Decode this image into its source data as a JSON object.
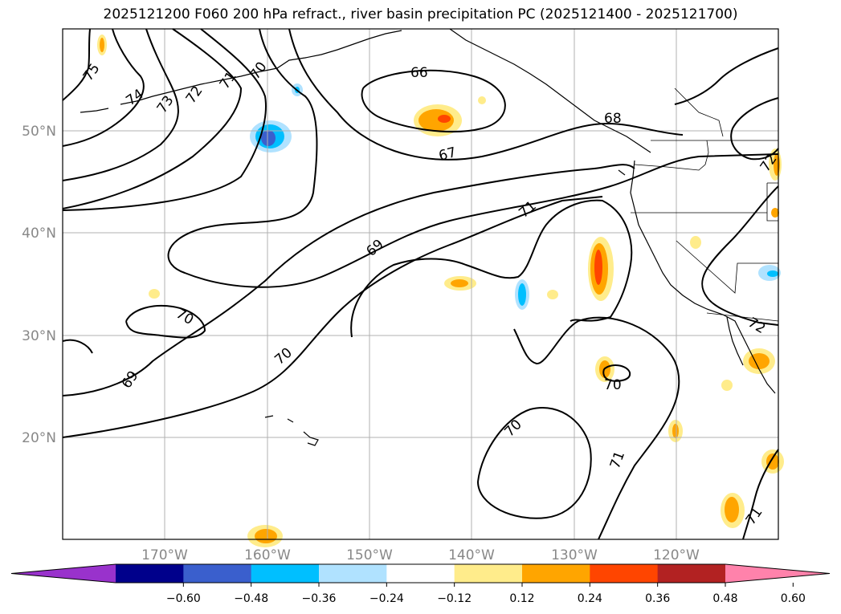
{
  "title": "2025121200 F060 200 hPa refract., river basin precipitation PC (2025121400 - 2025121700)",
  "lat_labels": [
    "50°N",
    "40°N",
    "30°N",
    "20°N"
  ],
  "lon_labels": [
    "170°W",
    "160°W",
    "150°W",
    "140°W",
    "130°W",
    "120°W"
  ],
  "contour_labels": [
    "75",
    "74",
    "73",
    "72",
    "71",
    "70",
    "66",
    "67",
    "68",
    "69",
    "71",
    "70",
    "70",
    "69",
    "70",
    "72",
    "70",
    "71",
    "71",
    "72"
  ],
  "colorbar": {
    "ticks": [
      "−0.60",
      "−0.48",
      "−0.36",
      "−0.24",
      "−0.12",
      "0.12",
      "0.24",
      "0.36",
      "0.48",
      "0.60"
    ],
    "colors": [
      "#9932cc",
      "#00008b",
      "#3a5fcd",
      "#00bfff",
      "#b0e2ff",
      "#ffffff",
      "#ffec8b",
      "#ffa500",
      "#ff4500",
      "#b22222",
      "#ff82ab"
    ]
  },
  "map": {
    "projection": "PlateCarree",
    "lon_range": [
      "180°W",
      "110°W"
    ],
    "lat_range": [
      "10°N",
      "60°N"
    ],
    "contour_field": "200 hPa refractivity",
    "shaded_field": "river basin precipitation PC"
  }
}
